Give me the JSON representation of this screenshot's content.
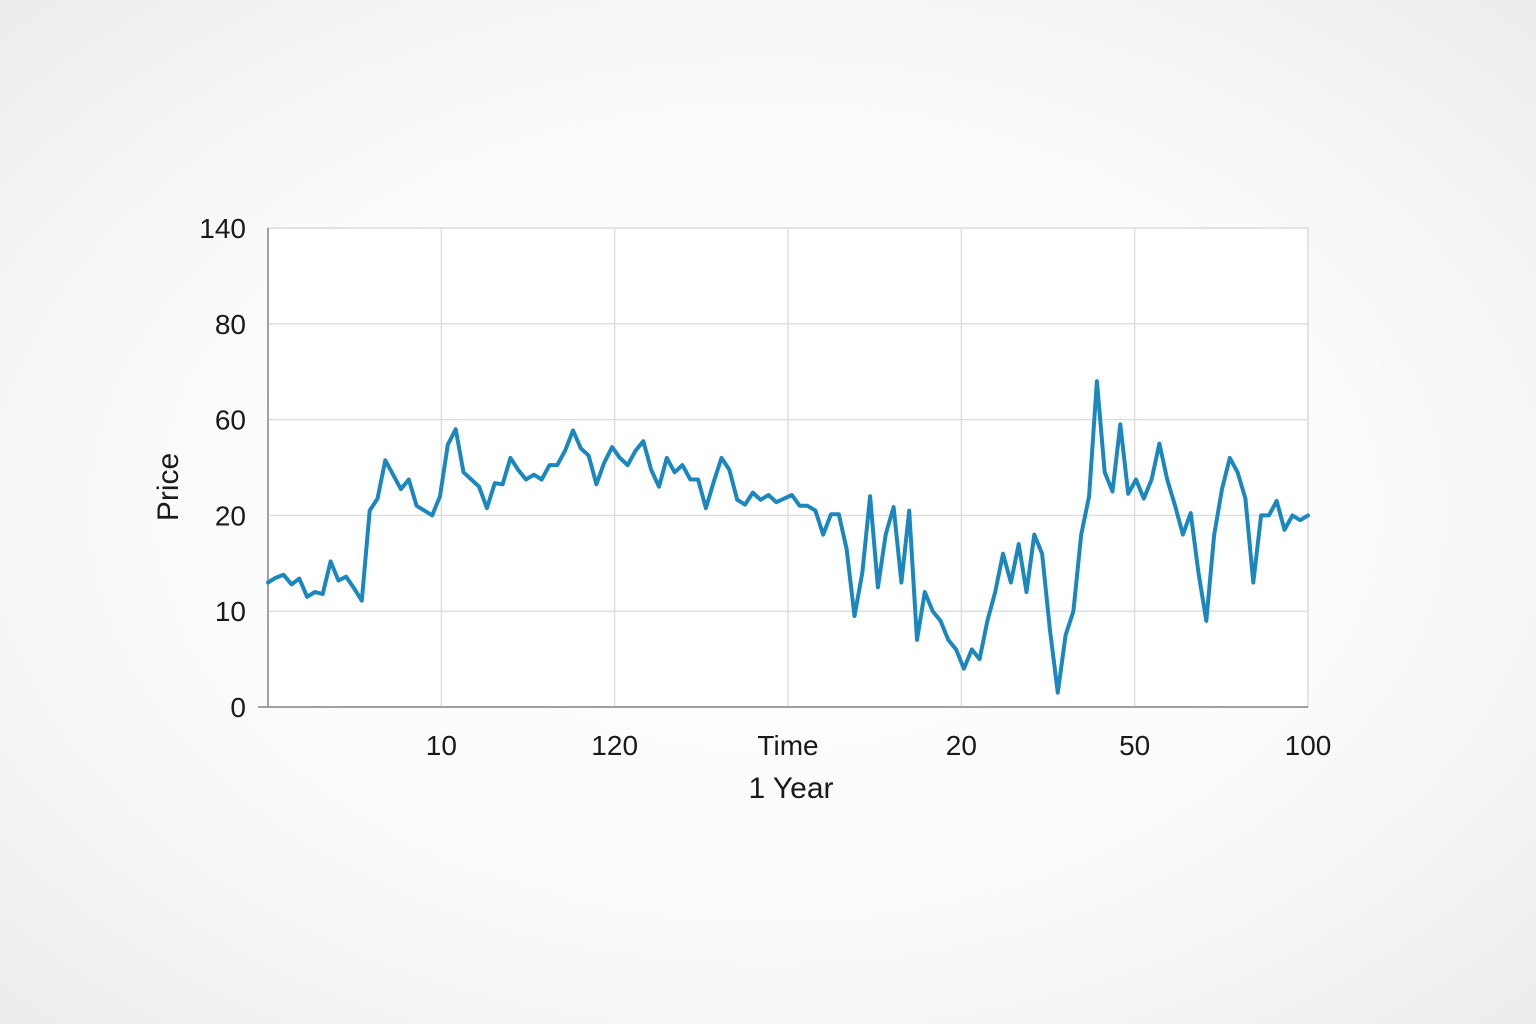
{
  "chart_data": {
    "type": "line",
    "xlabel": "Time",
    "xlabel_sub": "1 Year",
    "ylabel": "Price",
    "y_ticks": [
      "0",
      "10",
      "20",
      "60",
      "80",
      "140"
    ],
    "x_ticks": [
      "10",
      "120",
      "Time",
      "20",
      "50",
      "100"
    ],
    "grid": true,
    "legend": "none",
    "series": [
      {
        "color": "#1a87bf",
        "values": [
          13.0,
          13.5,
          13.8,
          12.8,
          13.4,
          11.5,
          12.0,
          11.8,
          15.2,
          13.2,
          13.6,
          12.4,
          11.1,
          22.0,
          27.0,
          43.0,
          37.0,
          31.0,
          35.0,
          24.0,
          22.0,
          20.0,
          28.0,
          49.5,
          56.0,
          38.0,
          35.0,
          32.0,
          23.0,
          33.5,
          33.0,
          44.0,
          39.0,
          35.0,
          37.0,
          35.0,
          41.0,
          41.0,
          47.0,
          55.5,
          48.0,
          45.0,
          33.0,
          42.0,
          48.5,
          44.0,
          41.0,
          47.0,
          51.0,
          39.0,
          32.0,
          44.0,
          38.0,
          41.0,
          35.0,
          35.0,
          23.0,
          34.0,
          44.0,
          39.0,
          26.5,
          24.5,
          29.5,
          26.5,
          28.5,
          25.5,
          27.0,
          28.5,
          24.0,
          24.0,
          22.0,
          18.0,
          20.5,
          20.5,
          16.5,
          9.5,
          14.0,
          28.0,
          12.5,
          18.0,
          23.5,
          13.0,
          22.0,
          7.0,
          12.0,
          10.0,
          9.0,
          7.0,
          6.0,
          4.0,
          6.0,
          5.0,
          9.0,
          12.0,
          16.0,
          13.0,
          17.0,
          12.0,
          18.0,
          16.0,
          8.0,
          1.5,
          7.5,
          10.0,
          18.0,
          28.0,
          68.0,
          38.0,
          30.0,
          58.0,
          29.0,
          35.0,
          27.0,
          35.0,
          50.0,
          35.0,
          24.0,
          18.0,
          21.0,
          14.0,
          9.0,
          18.0,
          31.0,
          44.0,
          38.0,
          27.0,
          13.0,
          20.0,
          20.0,
          26.0,
          18.5,
          20.0,
          19.5,
          20.0
        ]
      }
    ]
  }
}
